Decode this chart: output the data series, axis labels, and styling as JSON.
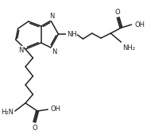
{
  "bg_color": "#ffffff",
  "line_color": "#222222",
  "line_width": 1.1,
  "font_size": 6.0,
  "fig_width": 1.9,
  "fig_height": 1.74,
  "dpi": 100,
  "xlim": [
    0,
    190
  ],
  "ylim": [
    174,
    0
  ]
}
